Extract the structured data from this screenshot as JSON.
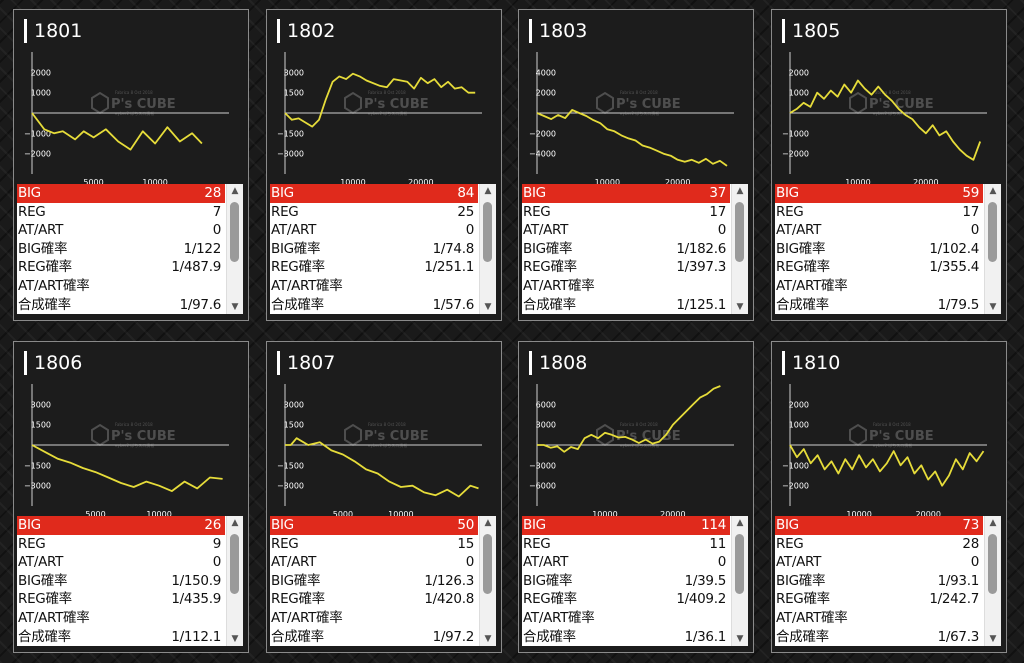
{
  "colors": {
    "line": "#e6dc3a",
    "highlight": "#e02a1c",
    "axis": "#ffffff",
    "label": "#ffffff"
  },
  "watermark": {
    "main": "P's CUBE",
    "sub": "Fabrica 8 Ost 2018",
    "sub2": "eyber2 ぱちスロ情報"
  },
  "machines": [
    {
      "title": "1801",
      "stats": [
        {
          "label": "BIG",
          "value": "28"
        },
        {
          "label": "REG",
          "value": "7"
        },
        {
          "label": "AT/ART",
          "value": "0"
        },
        {
          "label": "BIG確率",
          "value": "1/122"
        },
        {
          "label": "REG確率",
          "value": "1/487.9"
        },
        {
          "label": "AT/ART確率",
          "value": ""
        },
        {
          "label": "合成確率",
          "value": "1/97.6"
        }
      ],
      "chart_data": {
        "type": "line",
        "xlim": [
          0,
          16000
        ],
        "ylim": [
          -3000,
          3000
        ],
        "yticks": [
          2000,
          1000,
          -1000,
          -2000
        ],
        "xticks": [
          5000,
          10000
        ],
        "x": [
          0,
          1000,
          1800,
          2500,
          3500,
          4200,
          5000,
          6000,
          7000,
          8000,
          9000,
          10000,
          11000,
          12000,
          13000,
          13800
        ],
        "y": [
          0,
          -800,
          -1000,
          -900,
          -1300,
          -900,
          -1200,
          -800,
          -1400,
          -1800,
          -900,
          -1500,
          -700,
          -1400,
          -1000,
          -1500
        ]
      }
    },
    {
      "title": "1802",
      "stats": [
        {
          "label": "BIG",
          "value": "84"
        },
        {
          "label": "REG",
          "value": "25"
        },
        {
          "label": "AT/ART",
          "value": "0"
        },
        {
          "label": "BIG確率",
          "value": "1/74.8"
        },
        {
          "label": "REG確率",
          "value": "1/251.1"
        },
        {
          "label": "AT/ART確率",
          "value": ""
        },
        {
          "label": "合成確率",
          "value": "1/57.6"
        }
      ],
      "chart_data": {
        "type": "line",
        "xlim": [
          0,
          29000
        ],
        "ylim": [
          -4500,
          4500
        ],
        "yticks": [
          3000,
          1500,
          -1500,
          -3000
        ],
        "xticks": [
          10000,
          20000
        ],
        "x": [
          0,
          1000,
          2000,
          3000,
          4000,
          5000,
          6000,
          7000,
          8000,
          9000,
          10000,
          11000,
          12000,
          14000,
          15000,
          16000,
          18000,
          19000,
          20000,
          21000,
          22000,
          23000,
          24000,
          25000,
          26000,
          27000,
          28000
        ],
        "y": [
          0,
          -500,
          -400,
          -700,
          -1000,
          -500,
          1000,
          2300,
          2700,
          2500,
          2900,
          2700,
          2400,
          2000,
          1900,
          2500,
          2300,
          1800,
          2600,
          2200,
          2500,
          1900,
          2300,
          1800,
          1900,
          1500,
          1500
        ]
      }
    },
    {
      "title": "1803",
      "stats": [
        {
          "label": "BIG",
          "value": "37"
        },
        {
          "label": "REG",
          "value": "17"
        },
        {
          "label": "AT/ART",
          "value": "0"
        },
        {
          "label": "BIG確率",
          "value": "1/182.6"
        },
        {
          "label": "REG確率",
          "value": "1/397.3"
        },
        {
          "label": "AT/ART確率",
          "value": ""
        },
        {
          "label": "合成確率",
          "value": "1/125.1"
        }
      ],
      "chart_data": {
        "type": "line",
        "xlim": [
          0,
          28000
        ],
        "ylim": [
          -6000,
          6000
        ],
        "yticks": [
          4000,
          2000,
          -2000,
          -4000
        ],
        "xticks": [
          10000,
          20000
        ],
        "x": [
          0,
          1000,
          2000,
          3000,
          4000,
          5000,
          6000,
          7000,
          8000,
          9000,
          10000,
          11000,
          12000,
          13000,
          14000,
          15000,
          16000,
          17000,
          18000,
          19000,
          20000,
          21000,
          22000,
          23000,
          24000,
          25000,
          26000,
          27000
        ],
        "y": [
          0,
          -300,
          -600,
          -200,
          -500,
          300,
          0,
          -300,
          -700,
          -1000,
          -1600,
          -1800,
          -2200,
          -2500,
          -2700,
          -3200,
          -3400,
          -3700,
          -4000,
          -4200,
          -4600,
          -4800,
          -4600,
          -4900,
          -4500,
          -5000,
          -4700,
          -5200
        ]
      }
    },
    {
      "title": "1805",
      "stats": [
        {
          "label": "BIG",
          "value": "59"
        },
        {
          "label": "REG",
          "value": "17"
        },
        {
          "label": "AT/ART",
          "value": "0"
        },
        {
          "label": "BIG確率",
          "value": "1/102.4"
        },
        {
          "label": "REG確率",
          "value": "1/355.4"
        },
        {
          "label": "AT/ART確率",
          "value": ""
        },
        {
          "label": "合成確率",
          "value": "1/79.5"
        }
      ],
      "chart_data": {
        "type": "line",
        "xlim": [
          0,
          29000
        ],
        "ylim": [
          -3000,
          3000
        ],
        "yticks": [
          2000,
          1000,
          -1000,
          -2000
        ],
        "xticks": [
          10000,
          20000
        ],
        "x": [
          0,
          1000,
          2000,
          3000,
          4000,
          5000,
          6000,
          7000,
          8000,
          9000,
          10000,
          11000,
          12000,
          13000,
          14000,
          15000,
          16000,
          17000,
          18000,
          19000,
          20000,
          21000,
          22000,
          23000,
          24000,
          25000,
          26000,
          27000,
          28000
        ],
        "y": [
          0,
          200,
          500,
          300,
          1000,
          700,
          1100,
          800,
          1400,
          1000,
          1600,
          1200,
          900,
          1300,
          900,
          600,
          200,
          -100,
          -300,
          -700,
          -1000,
          -600,
          -1100,
          -900,
          -1400,
          -1800,
          -2100,
          -2300,
          -1400
        ]
      }
    },
    {
      "title": "1806",
      "stats": [
        {
          "label": "BIG",
          "value": "26"
        },
        {
          "label": "REG",
          "value": "9"
        },
        {
          "label": "AT/ART",
          "value": "0"
        },
        {
          "label": "BIG確率",
          "value": "1/150.9"
        },
        {
          "label": "REG確率",
          "value": "1/435.9"
        },
        {
          "label": "AT/ART確率",
          "value": ""
        },
        {
          "label": "合成確率",
          "value": "1/112.1"
        }
      ],
      "chart_data": {
        "type": "line",
        "xlim": [
          0,
          15500
        ],
        "ylim": [
          -4500,
          4500
        ],
        "yticks": [
          3000,
          1500,
          -1500,
          -3000
        ],
        "xticks": [
          5000,
          10000
        ],
        "x": [
          0,
          1000,
          2000,
          3000,
          4000,
          5000,
          6000,
          7000,
          8000,
          9000,
          10000,
          11000,
          12000,
          13000,
          14000,
          15000
        ],
        "y": [
          0,
          -500,
          -1000,
          -1300,
          -1700,
          -2000,
          -2400,
          -2800,
          -3100,
          -2700,
          -3000,
          -3400,
          -2700,
          -3200,
          -2400,
          -2500
        ]
      }
    },
    {
      "title": "1807",
      "stats": [
        {
          "label": "BIG",
          "value": "50"
        },
        {
          "label": "REG",
          "value": "15"
        },
        {
          "label": "AT/ART",
          "value": "0"
        },
        {
          "label": "BIG確率",
          "value": "1/126.3"
        },
        {
          "label": "REG確率",
          "value": "1/420.8"
        },
        {
          "label": "AT/ART確率",
          "value": ""
        },
        {
          "label": "合成確率",
          "value": "1/97.2"
        }
      ],
      "chart_data": {
        "type": "line",
        "xlim": [
          0,
          17000
        ],
        "ylim": [
          -4500,
          4500
        ],
        "yticks": [
          3000,
          1500,
          -1500,
          -3000
        ],
        "xticks": [
          5000,
          10000
        ],
        "x": [
          0,
          500,
          1000,
          2000,
          3000,
          4000,
          5000,
          6000,
          7000,
          8000,
          9000,
          10000,
          11000,
          12000,
          13000,
          14000,
          15000,
          16000,
          16700
        ],
        "y": [
          0,
          0,
          500,
          0,
          200,
          -400,
          -700,
          -1200,
          -1800,
          -2100,
          -2700,
          -3100,
          -3000,
          -3500,
          -3700,
          -3300,
          -3800,
          -3000,
          -3200
        ]
      }
    },
    {
      "title": "1808",
      "stats": [
        {
          "label": "BIG",
          "value": "114"
        },
        {
          "label": "REG",
          "value": "11"
        },
        {
          "label": "AT/ART",
          "value": "0"
        },
        {
          "label": "BIG確率",
          "value": "1/39.5"
        },
        {
          "label": "REG確率",
          "value": "1/409.2"
        },
        {
          "label": "AT/ART確率",
          "value": ""
        },
        {
          "label": "合成確率",
          "value": "1/36.1"
        }
      ],
      "chart_data": {
        "type": "line",
        "xlim": [
          0,
          29000
        ],
        "ylim": [
          -9000,
          9000
        ],
        "yticks": [
          6000,
          3000,
          -3000,
          -6000
        ],
        "xticks": [
          10000,
          20000
        ],
        "x": [
          0,
          1000,
          2000,
          3000,
          4000,
          5000,
          6000,
          7000,
          8000,
          9000,
          10000,
          11000,
          12000,
          13000,
          14000,
          15000,
          16000,
          17000,
          18000,
          19000,
          20000,
          21000,
          22000,
          23000,
          24000,
          25000,
          26000,
          27000
        ],
        "y": [
          0,
          0,
          -400,
          -200,
          -1000,
          -300,
          -600,
          1000,
          1500,
          1000,
          1800,
          1500,
          1100,
          1200,
          800,
          300,
          800,
          200,
          500,
          1500,
          3000,
          4000,
          5000,
          6000,
          7000,
          7500,
          8300,
          8700
        ]
      }
    },
    {
      "title": "1810",
      "stats": [
        {
          "label": "BIG",
          "value": "73"
        },
        {
          "label": "REG",
          "value": "28"
        },
        {
          "label": "AT/ART",
          "value": "0"
        },
        {
          "label": "BIG確率",
          "value": "1/93.1"
        },
        {
          "label": "REG確率",
          "value": "1/242.7"
        },
        {
          "label": "AT/ART確率",
          "value": ""
        },
        {
          "label": "合成確率",
          "value": "1/67.3"
        }
      ],
      "chart_data": {
        "type": "line",
        "xlim": [
          0,
          28500
        ],
        "ylim": [
          -3000,
          3000
        ],
        "yticks": [
          2000,
          1000,
          -1000,
          -2000
        ],
        "xticks": [
          10000,
          20000
        ],
        "x": [
          0,
          1000,
          2000,
          3000,
          4000,
          5000,
          6000,
          7000,
          8000,
          9000,
          10000,
          11000,
          12000,
          13000,
          14000,
          15000,
          16000,
          17000,
          18000,
          19000,
          20000,
          21000,
          22000,
          23000,
          24000,
          25000,
          26000,
          27000,
          28000
        ],
        "y": [
          0,
          -600,
          -200,
          -900,
          -500,
          -1200,
          -800,
          -1400,
          -700,
          -1200,
          -500,
          -1100,
          -700,
          -1300,
          -900,
          -300,
          -1000,
          -600,
          -1400,
          -1000,
          -1700,
          -1300,
          -2000,
          -1500,
          -700,
          -1200,
          -400,
          -800,
          -300
        ]
      }
    }
  ]
}
